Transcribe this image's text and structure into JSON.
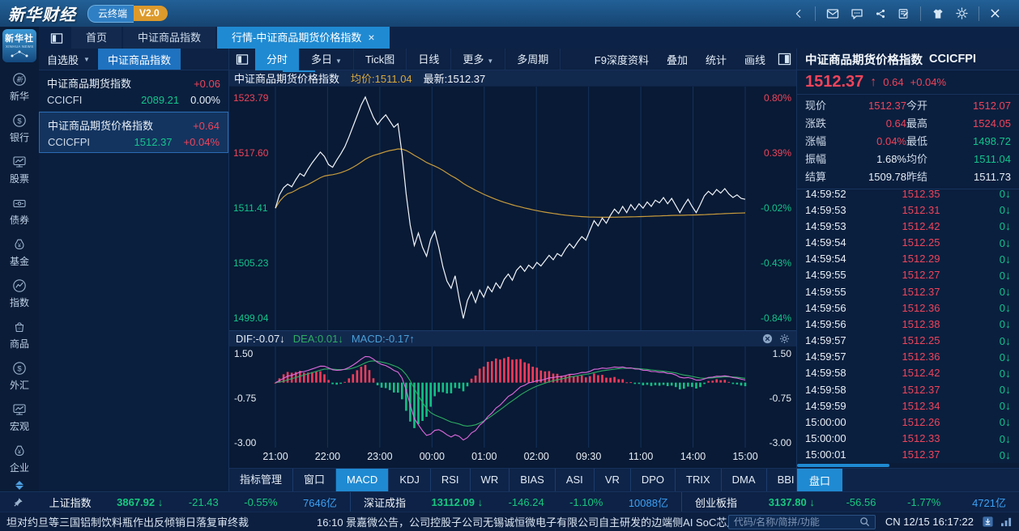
{
  "colors": {
    "accent": "#1f8ad2",
    "up": "#f0445a",
    "down": "#14c48c",
    "avg_line": "#c89b3c",
    "price_line": "#f2f5fa",
    "dif_line": "#e06ae0",
    "dea_line": "#2eac62",
    "hist_up": "#f23c5a",
    "hist_down": "#12c183",
    "grid": "#15335e",
    "amount_blue": "#3da1f5"
  },
  "titlebar": {
    "logo": "新华财经",
    "cloud_badge": "云终端",
    "version_badge": "V2.0",
    "icons": [
      "chevron-left-icon",
      "mail-icon",
      "chat-icon",
      "share-icon",
      "note-icon",
      "shirt-icon",
      "gear-icon",
      "close-icon"
    ]
  },
  "tabs": {
    "home": "首页",
    "index": "中证商品指数",
    "active": "行情-中证商品期货价格指数",
    "close": "×"
  },
  "sidebar": {
    "logo_line1": "新华社",
    "logo_line2": "XINHUA NEWS",
    "items": [
      {
        "label": "新华",
        "icon": "xinhua-icon"
      },
      {
        "label": "银行",
        "icon": "bank-icon"
      },
      {
        "label": "股票",
        "icon": "stock-icon"
      },
      {
        "label": "债券",
        "icon": "bond-icon"
      },
      {
        "label": "基金",
        "icon": "fund-icon"
      },
      {
        "label": "指数",
        "icon": "index-icon"
      },
      {
        "label": "商品",
        "icon": "commodity-icon"
      },
      {
        "label": "外汇",
        "icon": "forex-icon"
      },
      {
        "label": "宏观",
        "icon": "macro-icon"
      },
      {
        "label": "企业",
        "icon": "enterprise-icon"
      }
    ]
  },
  "watchlist": {
    "dropdown": "自选股",
    "caret": "▼",
    "tab": "中证商品指数",
    "items": [
      {
        "name": "中证商品期货指数",
        "code": "CCICFI",
        "price": "2089.21",
        "change": "+0.06",
        "pct": "0.00%",
        "pct_tone": "flat",
        "selected": false
      },
      {
        "name": "中证商品期货价格指数",
        "code": "CCICFPI",
        "price": "1512.37",
        "change": "+0.64",
        "pct": "+0.04%",
        "pct_tone": "up",
        "selected": true
      }
    ]
  },
  "chart_toolbar": {
    "left": [
      {
        "label": "分时",
        "active": true
      },
      {
        "label": "多日",
        "caret": true
      },
      {
        "label": "Tick图"
      },
      {
        "label": "日线"
      },
      {
        "label": "更多",
        "caret": true
      },
      {
        "label": "多周期"
      }
    ],
    "right": [
      "F9深度资料",
      "叠加",
      "统计",
      "画线"
    ]
  },
  "chart_header": {
    "name": "中证商品期货价格指数",
    "avg": "均价:1511.04",
    "last": "最新:1512.37"
  },
  "macd_header": {
    "dif": "DIF:-0.07↓",
    "dea": "DEA:0.01↓",
    "macd": "MACD:-0.17↑"
  },
  "indicator_tabs": {
    "active": "MACD",
    "items": [
      "指标管理",
      "窗口",
      "MACD",
      "KDJ",
      "RSI",
      "WR",
      "BIAS",
      "ASI",
      "VR",
      "DPO",
      "TRIX",
      "DMA",
      "BBI"
    ]
  },
  "quote": {
    "name": "中证商品期货价格指数",
    "code": "CCICFPI",
    "price": "1512.37",
    "arrow": "↑",
    "change": "0.64",
    "pct": "+0.04%",
    "tab": "盘口",
    "stats": [
      {
        "l": "现价",
        "v": "1512.37",
        "c": "up"
      },
      {
        "l": "今开",
        "v": "1512.07",
        "c": "up"
      },
      {
        "l": "涨跌",
        "v": "0.64",
        "c": "up"
      },
      {
        "l": "最高",
        "v": "1524.05",
        "c": "up"
      },
      {
        "l": "涨幅",
        "v": "0.04%",
        "c": "up"
      },
      {
        "l": "最低",
        "v": "1498.72",
        "c": "down"
      },
      {
        "l": "振幅",
        "v": "1.68%",
        "c": "flat"
      },
      {
        "l": "均价",
        "v": "1511.04",
        "c": "down"
      },
      {
        "l": "结算",
        "v": "1509.78",
        "c": "flat"
      },
      {
        "l": "昨结",
        "v": "1511.73",
        "c": "flat"
      }
    ],
    "tape_vol": "0",
    "tape_arrow": "↓",
    "tape": [
      {
        "t": "14:59:52",
        "p": "1512.35"
      },
      {
        "t": "14:59:53",
        "p": "1512.31"
      },
      {
        "t": "14:59:53",
        "p": "1512.42"
      },
      {
        "t": "14:59:54",
        "p": "1512.25"
      },
      {
        "t": "14:59:54",
        "p": "1512.29"
      },
      {
        "t": "14:59:55",
        "p": "1512.27"
      },
      {
        "t": "14:59:55",
        "p": "1512.37"
      },
      {
        "t": "14:59:56",
        "p": "1512.36"
      },
      {
        "t": "14:59:56",
        "p": "1512.38"
      },
      {
        "t": "14:59:57",
        "p": "1512.25"
      },
      {
        "t": "14:59:57",
        "p": "1512.36"
      },
      {
        "t": "14:59:58",
        "p": "1512.42"
      },
      {
        "t": "14:59:58",
        "p": "1512.37"
      },
      {
        "t": "14:59:59",
        "p": "1512.34"
      },
      {
        "t": "15:00:00",
        "p": "1512.26"
      },
      {
        "t": "15:00:00",
        "p": "1512.33"
      },
      {
        "t": "15:00:01",
        "p": "1512.37"
      }
    ]
  },
  "statusbar": {
    "arrow_down": "↓",
    "indices": [
      {
        "name": "上证指数",
        "value": "3867.92",
        "change": "-21.43",
        "pct": "-0.55%",
        "amount": "7646亿"
      },
      {
        "name": "深证成指",
        "value": "13112.09",
        "change": "-146.24",
        "pct": "-1.10%",
        "amount": "10088亿"
      },
      {
        "name": "创业板指",
        "value": "3137.80",
        "change": "-56.56",
        "pct": "-1.77%",
        "amount": "4721亿"
      }
    ]
  },
  "ticker": {
    "news1": "坦对约旦等三国铝制饮料瓶作出反倾销日落复审终裁",
    "news2": "16:10  景嘉微公告，公司控股子公司无锡诚恒微电子有限公司自主研发的边端侧AI SoC芯片CH37系列已顺利完成流",
    "search_placeholder": "代码/名称/简拼/功能",
    "locale": "CN",
    "datetime": "12/15 16:17:22"
  },
  "chart_data": {
    "type": "line",
    "title": "中证商品期货价格指数 分时",
    "x_labels": [
      "21:00",
      "22:00",
      "23:00",
      "00:00",
      "01:00",
      "02:00",
      "09:30",
      "11:00",
      "14:00",
      "15:00"
    ],
    "y_axis_left": [
      "1523.79",
      "1517.60",
      "1511.41",
      "1505.23",
      "1499.04"
    ],
    "y_axis_right": [
      "0.80%",
      "0.39%",
      "-0.02%",
      "-0.43%",
      "-0.84%"
    ],
    "ylim": [
      1499.04,
      1523.79
    ],
    "prev_settle": 1511.73,
    "series": [
      {
        "name": "价格",
        "values": [
          1511.4,
          1512.9,
          1513.7,
          1514.1,
          1513.8,
          1514.6,
          1515.3,
          1515.0,
          1515.8,
          1516.5,
          1517.1,
          1517.7,
          1517.2,
          1516.3,
          1516.0,
          1516.8,
          1517.5,
          1518.3,
          1519.4,
          1520.6,
          1521.8,
          1523.0,
          1523.9,
          1522.7,
          1521.6,
          1520.8,
          1521.4,
          1521.9,
          1521.2,
          1520.5,
          1520.9,
          1517.5,
          1513.0,
          1509.5,
          1507.2,
          1508.6,
          1507.0,
          1506.0,
          1507.9,
          1508.8,
          1507.0,
          1504.8,
          1503.2,
          1502.4,
          1503.8,
          1501.2,
          1499.0,
          1501.0,
          1502.0,
          1500.8,
          1502.2,
          1501.4,
          1502.6,
          1502.0,
          1503.0,
          1502.4,
          1503.4,
          1504.0,
          1503.3,
          1504.4,
          1504.9,
          1504.3,
          1505.0,
          1504.6,
          1505.3,
          1504.9,
          1505.5,
          1506.1,
          1505.6,
          1506.3,
          1506.0,
          1506.8,
          1507.4,
          1506.9,
          1507.6,
          1508.2,
          1507.8,
          1508.9,
          1510.0,
          1509.4,
          1510.3,
          1509.7,
          1510.6,
          1511.3,
          1510.8,
          1511.6,
          1510.9,
          1511.8,
          1511.2,
          1511.9,
          1511.4,
          1512.1,
          1511.6,
          1512.3,
          1512.0,
          1512.6,
          1511.9,
          1512.5,
          1511.7,
          1510.9,
          1511.7,
          1512.4,
          1511.6,
          1510.9,
          1511.8,
          1512.8,
          1513.3,
          1512.9,
          1513.5,
          1513.1,
          1513.6,
          1513.0,
          1512.6,
          1512.9,
          1512.5,
          1512.4
        ]
      },
      {
        "name": "均价",
        "derived": "running_mean"
      }
    ],
    "macd": {
      "y_labels": [
        "1.50",
        "-0.75",
        "-3.00"
      ],
      "range": [
        1.5,
        -3.0
      ],
      "dif": -0.07,
      "dea": 0.01,
      "macd": -0.17
    }
  }
}
